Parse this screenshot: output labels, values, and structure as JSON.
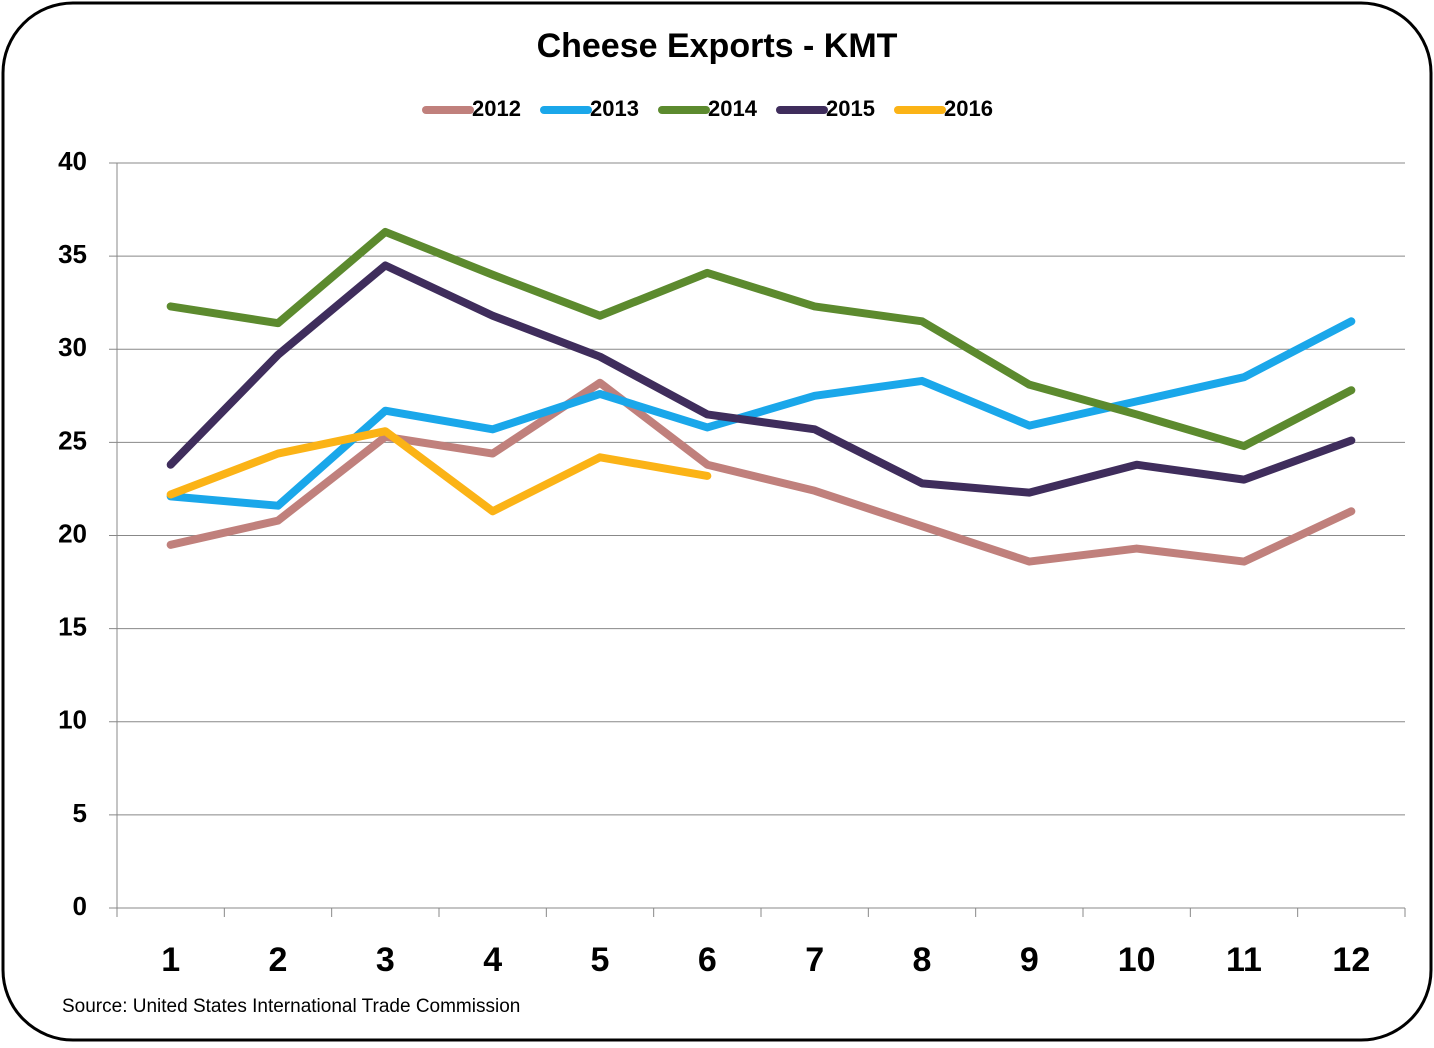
{
  "chart_data": {
    "type": "line",
    "title": "Cheese Exports - KMT",
    "categories": [
      "1",
      "2",
      "3",
      "4",
      "5",
      "6",
      "7",
      "8",
      "9",
      "10",
      "11",
      "12"
    ],
    "series": [
      {
        "name": "2012",
        "color": "#c0807c",
        "values": [
          19.5,
          20.8,
          25.3,
          24.4,
          28.2,
          23.8,
          22.4,
          20.5,
          18.6,
          19.3,
          18.6,
          21.3
        ]
      },
      {
        "name": "2013",
        "color": "#1aa7ea",
        "values": [
          22.1,
          21.6,
          26.7,
          25.7,
          27.6,
          25.8,
          27.5,
          28.3,
          25.9,
          27.2,
          28.5,
          31.5
        ]
      },
      {
        "name": "2014",
        "color": "#5c8a2e",
        "values": [
          32.3,
          31.4,
          36.3,
          34.0,
          31.8,
          34.1,
          32.3,
          31.5,
          28.1,
          26.5,
          24.8,
          27.8
        ]
      },
      {
        "name": "2015",
        "color": "#3f2d5c",
        "values": [
          23.8,
          29.7,
          34.5,
          31.8,
          29.6,
          26.5,
          25.7,
          22.8,
          22.3,
          23.8,
          23.0,
          25.1
        ]
      },
      {
        "name": "2016",
        "color": "#fbb316",
        "values": [
          22.2,
          24.4,
          25.6,
          21.3,
          24.2,
          23.2,
          null,
          null,
          null,
          null,
          null,
          null
        ]
      }
    ],
    "ylim": [
      0,
      40
    ],
    "yticks": [
      0,
      5,
      10,
      15,
      20,
      25,
      30,
      35,
      40
    ],
    "grid": true,
    "legend": "top",
    "source": "Source: United States International Trade Commission"
  }
}
